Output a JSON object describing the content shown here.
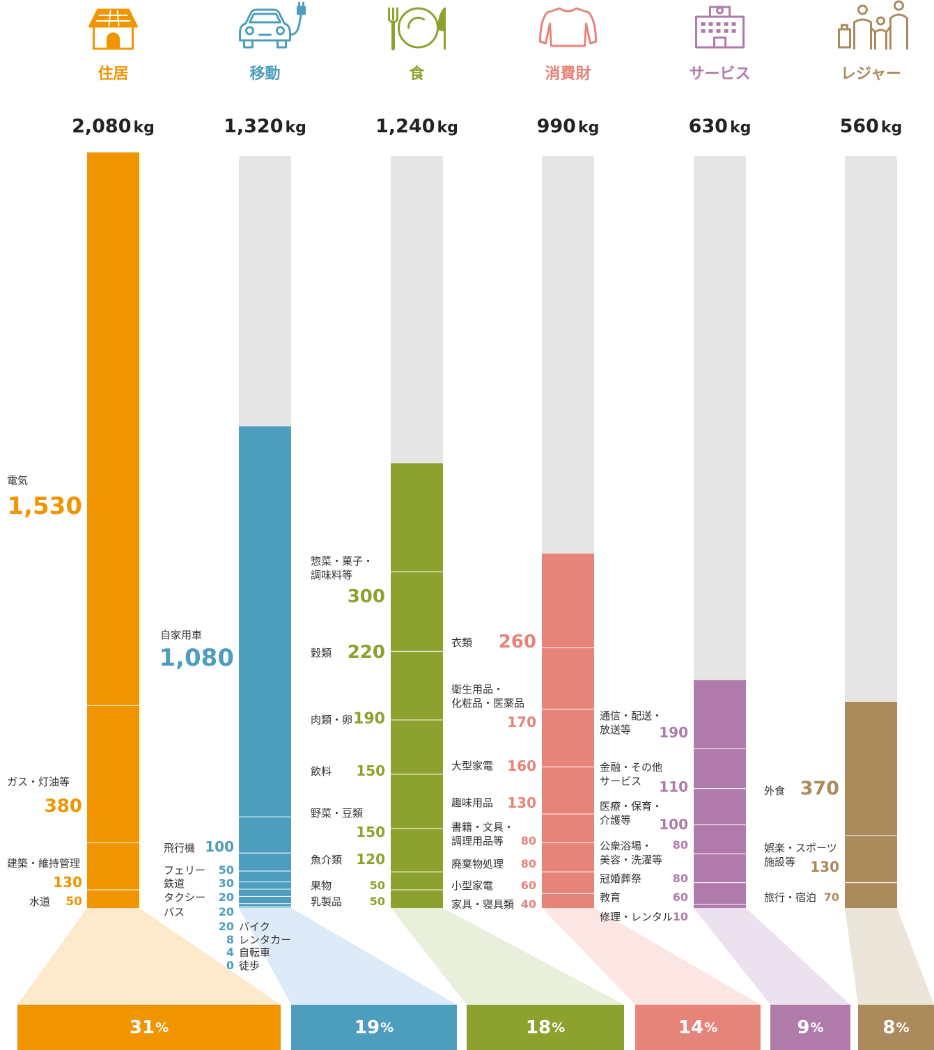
{
  "chart_data": {
    "type": "stacked-bar",
    "unit": "kg",
    "scale_max": 2080,
    "categories": [
      {
        "name": "住居",
        "color": "#f09400",
        "light": "#fde9cc",
        "icon": "house-icon",
        "total": "2,080",
        "total_value": 2080,
        "share": "31",
        "items": [
          {
            "label": "電気",
            "value": 1530,
            "display": "1,530"
          },
          {
            "label": "ガス・灯油等",
            "value": 380,
            "display": "380"
          },
          {
            "label": "建築・維持管理",
            "value": 130,
            "display": "130"
          },
          {
            "label": "水道",
            "value": 50,
            "display": "50"
          }
        ]
      },
      {
        "name": "移動",
        "color": "#4d9dbe",
        "light": "#dcebf7",
        "icon": "ev-car-icon",
        "total": "1,320",
        "total_value": 1320,
        "share": "19",
        "items": [
          {
            "label": "自家用車",
            "value": 1080,
            "display": "1,080"
          },
          {
            "label": "飛行機",
            "value": 100,
            "display": "100"
          },
          {
            "label": "フェリー",
            "value": 50,
            "display": "50"
          },
          {
            "label": "鉄道",
            "value": 30,
            "display": "30"
          },
          {
            "label": "タクシー",
            "value": 20,
            "display": "20"
          },
          {
            "label": "バス",
            "value": 20,
            "display": "20"
          },
          {
            "label": "バイク",
            "value": 20,
            "display": "20"
          },
          {
            "label": "レンタカー",
            "value": 8,
            "display": "8"
          },
          {
            "label": "自転車",
            "value": 4,
            "display": "4"
          },
          {
            "label": "徒歩",
            "value": 0,
            "display": "0"
          }
        ]
      },
      {
        "name": "食",
        "color": "#8da22e",
        "light": "#e8f0dc",
        "icon": "plate-cutlery-icon",
        "total": "1,240",
        "total_value": 1240,
        "share": "18",
        "items": [
          {
            "label": "惣菜・菓子・\n調味料等",
            "value": 300,
            "display": "300"
          },
          {
            "label": "穀類",
            "value": 220,
            "display": "220"
          },
          {
            "label": "肉類・卵",
            "value": 190,
            "display": "190"
          },
          {
            "label": "飲料",
            "value": 150,
            "display": "150"
          },
          {
            "label": "野菜・豆類",
            "value": 150,
            "display": "150"
          },
          {
            "label": "魚介類",
            "value": 120,
            "display": "120"
          },
          {
            "label": "果物",
            "value": 50,
            "display": "50"
          },
          {
            "label": "乳製品",
            "value": 50,
            "display": "50"
          }
        ]
      },
      {
        "name": "消費財",
        "color": "#e6847a",
        "light": "#fbe6e3",
        "icon": "sweater-icon",
        "total": "990",
        "total_value": 990,
        "share": "14",
        "items": [
          {
            "label": "衣類",
            "value": 260,
            "display": "260"
          },
          {
            "label": "衛生用品・\n化粧品・医薬品",
            "value": 170,
            "display": "170"
          },
          {
            "label": "大型家電",
            "value": 160,
            "display": "160"
          },
          {
            "label": "趣味用品",
            "value": 130,
            "display": "130"
          },
          {
            "label": "書籍・文具・\n調理用品等",
            "value": 80,
            "display": "80"
          },
          {
            "label": "廃棄物処理",
            "value": 80,
            "display": "80"
          },
          {
            "label": "小型家電",
            "value": 60,
            "display": "60"
          },
          {
            "label": "家具・寝具類",
            "value": 40,
            "display": "40"
          }
        ]
      },
      {
        "name": "サービス",
        "color": "#b07aaa",
        "light": "#ece1ee",
        "icon": "building-icon",
        "total": "630",
        "total_value": 630,
        "share": "9",
        "items": [
          {
            "label": "通信・配送・\n放送等",
            "value": 190,
            "display": "190"
          },
          {
            "label": "金融・その他\nサービス",
            "value": 110,
            "display": "110"
          },
          {
            "label": "医療・保育・\n介護等",
            "value": 100,
            "display": "100"
          },
          {
            "label": "公衆浴場・\n美容・洗濯等",
            "value": 80,
            "display": "80"
          },
          {
            "label": "冠婚葬祭",
            "value": 80,
            "display": "80"
          },
          {
            "label": "教育",
            "value": 60,
            "display": "60"
          },
          {
            "label": "修理・レンタル",
            "value": 10,
            "display": "10"
          }
        ]
      },
      {
        "name": "レジャー",
        "color": "#ab8a5c",
        "light": "#ebe5da",
        "icon": "family-travel-icon",
        "total": "560",
        "total_value": 560,
        "share": "8",
        "items": [
          {
            "label": "外食",
            "value": 370,
            "display": "370"
          },
          {
            "label": "娯楽・スポーツ\n施設等",
            "value": 130,
            "display": "130"
          },
          {
            "label": "旅行・宿泊",
            "value": 70,
            "display": "70"
          }
        ]
      }
    ]
  }
}
